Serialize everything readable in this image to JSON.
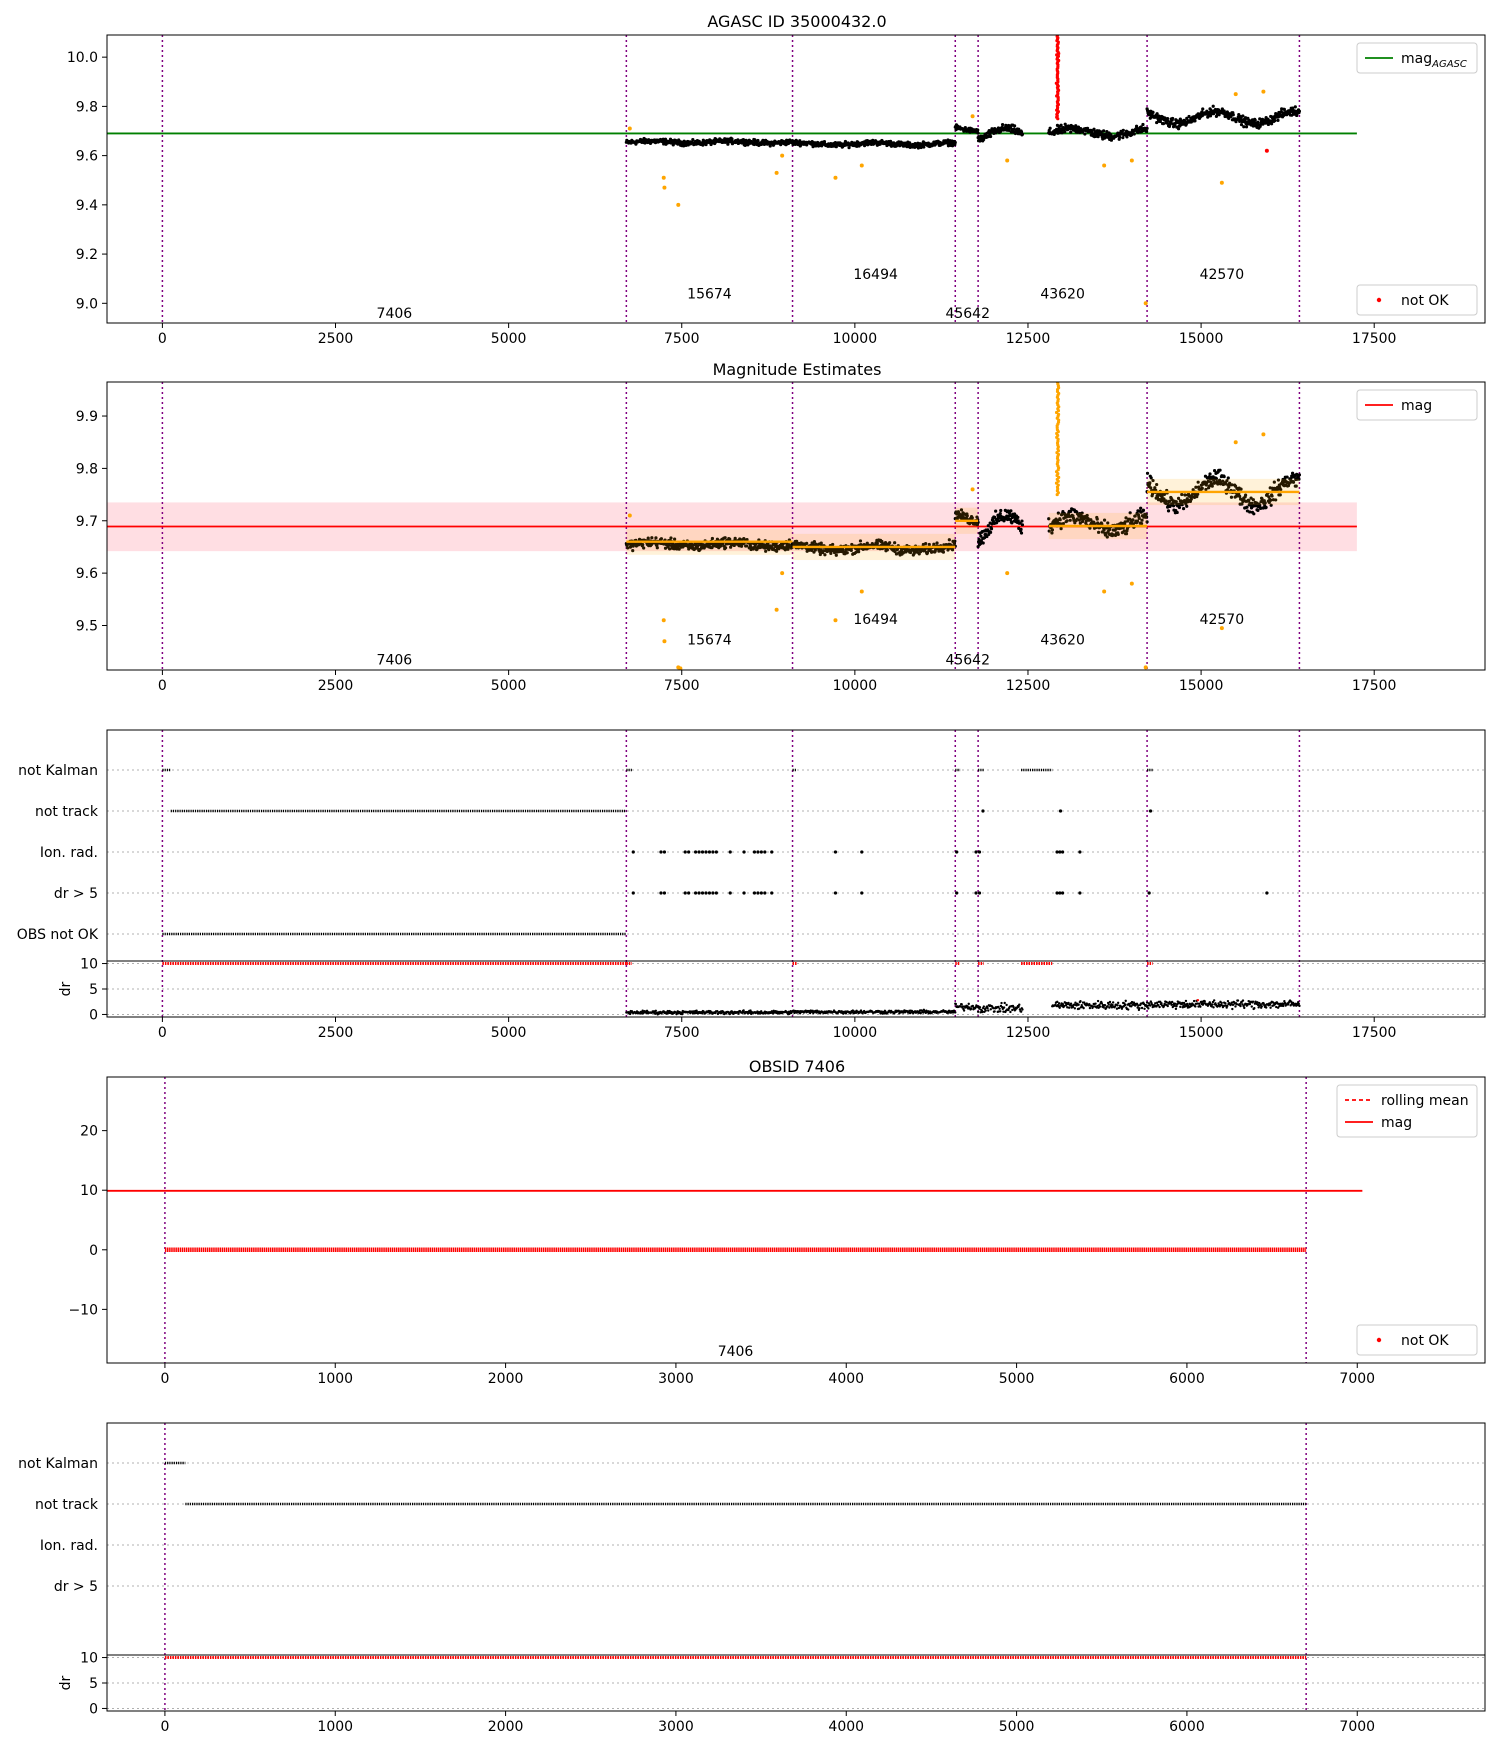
{
  "figure": {
    "titles": {
      "agasc": "AGASC ID 35000432.0",
      "estimates": "Magnitude Estimates",
      "obsid": "OBSID 7406"
    }
  },
  "colors": {
    "data_points": "#000000",
    "suspect": "#ffa500",
    "not_ok": "#ff0000",
    "mag_agasc": "#008000",
    "mag_line": "#ff0000",
    "band": "#ffb6c1",
    "obs_boundary": "#800080",
    "grid": "#b0b0b0"
  },
  "chart_data": [
    {
      "id": "agasc",
      "type": "scatter",
      "title": "AGASC ID 35000432.0",
      "xlim": [
        -800,
        19100
      ],
      "ylim": [
        8.92,
        10.09
      ],
      "xticks": [
        0,
        2500,
        5000,
        7500,
        10000,
        12500,
        15000,
        17500
      ],
      "yticks": [
        9.0,
        9.2,
        9.4,
        9.6,
        9.8,
        10.0
      ],
      "ytick_labels": [
        "9.0",
        "9.2",
        "9.4",
        "9.6",
        "9.8",
        "10.0"
      ],
      "hline": {
        "y": 9.69,
        "xmin": -800,
        "xmax": 17250,
        "color": "#008000"
      },
      "obs_boundaries": [
        0,
        6700,
        9100,
        11450,
        11780,
        14220,
        16420
      ],
      "obs_labels": [
        {
          "text": "7406",
          "x": 3350,
          "y": 8.96
        },
        {
          "text": "15674",
          "x": 7900,
          "y": 9.04
        },
        {
          "text": "16494",
          "x": 10300,
          "y": 9.12
        },
        {
          "text": "45642",
          "x": 11630,
          "y": 8.96
        },
        {
          "text": "43620",
          "x": 13000,
          "y": 9.04
        },
        {
          "text": "42570",
          "x": 15300,
          "y": 9.12
        }
      ],
      "legends": [
        {
          "pos": "upper right",
          "entries": [
            {
              "label": "mag",
              "sub": "AGASC",
              "kind": "line",
              "color": "#008000"
            }
          ]
        },
        {
          "pos": "lower right",
          "entries": [
            {
              "label": "not OK",
              "kind": "dot",
              "color": "#ff0000"
            }
          ]
        }
      ],
      "segments": [
        {
          "x": [
            6700,
            9100
          ],
          "mean": 9.655,
          "amp": 0.004,
          "noise": 0.013
        },
        {
          "x": [
            9100,
            11450
          ],
          "mean": 9.648,
          "amp": 0.005,
          "noise": 0.013
        },
        {
          "x": [
            11450,
            11780
          ],
          "mean": 9.71,
          "amp": 0.01,
          "noise": 0.012
        },
        {
          "x": [
            11780,
            12420
          ],
          "mean": 9.68,
          "amp": 0.03,
          "noise": 0.02
        },
        {
          "x": [
            12800,
            14220
          ],
          "mean": 9.695,
          "amp": 0.015,
          "noise": 0.022
        },
        {
          "x": [
            14220,
            16420
          ],
          "mean": 9.755,
          "amp": 0.025,
          "noise": 0.022
        }
      ],
      "outliers": [
        {
          "x": 6750,
          "y": 9.71,
          "c": "orange"
        },
        {
          "x": 7240,
          "y": 9.51,
          "c": "orange"
        },
        {
          "x": 7250,
          "y": 9.47,
          "c": "orange"
        },
        {
          "x": 7450,
          "y": 9.4,
          "c": "orange"
        },
        {
          "x": 8870,
          "y": 9.53,
          "c": "orange"
        },
        {
          "x": 8950,
          "y": 9.6,
          "c": "orange"
        },
        {
          "x": 9720,
          "y": 9.51,
          "c": "orange"
        },
        {
          "x": 10100,
          "y": 9.56,
          "c": "orange"
        },
        {
          "x": 11700,
          "y": 9.76,
          "c": "orange"
        },
        {
          "x": 12200,
          "y": 9.58,
          "c": "orange"
        },
        {
          "x": 13600,
          "y": 9.56,
          "c": "orange"
        },
        {
          "x": 14000,
          "y": 9.58,
          "c": "orange"
        },
        {
          "x": 14200,
          "y": 9.0,
          "c": "orange"
        },
        {
          "x": 15300,
          "y": 9.49,
          "c": "orange"
        },
        {
          "x": 15950,
          "y": 9.62,
          "c": "red"
        },
        {
          "x": 15900,
          "y": 9.86,
          "c": "orange"
        },
        {
          "x": 15500,
          "y": 9.85,
          "c": "orange"
        }
      ],
      "spike": {
        "x": 12930,
        "ymin": 9.75,
        "ymax": 10.09
      }
    },
    {
      "id": "estimates",
      "type": "scatter",
      "title": "Magnitude Estimates",
      "xlim": [
        -800,
        19100
      ],
      "ylim": [
        9.415,
        9.965
      ],
      "xticks": [
        0,
        2500,
        5000,
        7500,
        10000,
        12500,
        15000,
        17500
      ],
      "yticks": [
        9.5,
        9.6,
        9.7,
        9.8,
        9.9
      ],
      "ytick_labels": [
        "9.5",
        "9.6",
        "9.7",
        "9.8",
        "9.9"
      ],
      "hline": {
        "y": 9.689,
        "xmin": -800,
        "xmax": 17250,
        "color": "#ff0000"
      },
      "band": {
        "ymin": 9.642,
        "ymax": 9.735,
        "xmin": -800,
        "xmax": 17250
      },
      "obs_boundaries": [
        0,
        6700,
        9100,
        11450,
        11780,
        14220,
        16420
      ],
      "obs_labels": [
        {
          "text": "7406",
          "x": 3350,
          "y": 9.435
        },
        {
          "text": "15674",
          "x": 7900,
          "y": 9.473
        },
        {
          "text": "16494",
          "x": 10300,
          "y": 9.512
        },
        {
          "text": "45642",
          "x": 11630,
          "y": 9.435
        },
        {
          "text": "43620",
          "x": 13000,
          "y": 9.473
        },
        {
          "text": "42570",
          "x": 15300,
          "y": 9.512
        }
      ],
      "legends": [
        {
          "pos": "upper right",
          "entries": [
            {
              "label": "mag",
              "kind": "line",
              "color": "#ff0000"
            }
          ]
        }
      ],
      "segments": [
        {
          "x": [
            6700,
            9100
          ],
          "mean": 9.655,
          "amp": 0.004,
          "noise": 0.012,
          "est": 9.66
        },
        {
          "x": [
            9100,
            11450
          ],
          "mean": 9.648,
          "amp": 0.005,
          "noise": 0.012,
          "est": 9.65
        },
        {
          "x": [
            11450,
            11780
          ],
          "mean": 9.71,
          "amp": 0.01,
          "noise": 0.012,
          "est": 9.7
        },
        {
          "x": [
            11780,
            12420
          ],
          "mean": 9.68,
          "amp": 0.03,
          "noise": 0.018
        },
        {
          "x": [
            12800,
            14220
          ],
          "mean": 9.695,
          "amp": 0.015,
          "noise": 0.02,
          "est": 9.69
        },
        {
          "x": [
            14220,
            16420
          ],
          "mean": 9.755,
          "amp": 0.025,
          "noise": 0.02,
          "est": 9.755
        }
      ],
      "outliers": [
        {
          "x": 6750,
          "y": 9.71,
          "c": "orange"
        },
        {
          "x": 7240,
          "y": 9.51,
          "c": "orange"
        },
        {
          "x": 7250,
          "y": 9.47,
          "c": "orange"
        },
        {
          "x": 7450,
          "y": 9.42,
          "c": "orange"
        },
        {
          "x": 7480,
          "y": 9.418,
          "c": "orange"
        },
        {
          "x": 8870,
          "y": 9.53,
          "c": "orange"
        },
        {
          "x": 8950,
          "y": 9.6,
          "c": "orange"
        },
        {
          "x": 9720,
          "y": 9.51,
          "c": "orange"
        },
        {
          "x": 10100,
          "y": 9.565,
          "c": "orange"
        },
        {
          "x": 11700,
          "y": 9.76,
          "c": "orange"
        },
        {
          "x": 12200,
          "y": 9.6,
          "c": "orange"
        },
        {
          "x": 13600,
          "y": 9.565,
          "c": "orange"
        },
        {
          "x": 14000,
          "y": 9.58,
          "c": "orange"
        },
        {
          "x": 14200,
          "y": 9.42,
          "c": "orange"
        },
        {
          "x": 15300,
          "y": 9.495,
          "c": "orange"
        },
        {
          "x": 15900,
          "y": 9.865,
          "c": "orange"
        },
        {
          "x": 15500,
          "y": 9.85,
          "c": "orange"
        }
      ],
      "spike": {
        "x": 12930,
        "ymin": 9.75,
        "ymax": 9.965
      }
    },
    {
      "id": "flags_all",
      "type": "scatter",
      "xlim": [
        -800,
        19100
      ],
      "xticks": [
        0,
        2500,
        5000,
        7500,
        10000,
        12500,
        15000,
        17500
      ],
      "categories": [
        "not Kalman",
        "not track",
        "Ion. rad.",
        "dr > 5",
        "OBS not OK"
      ],
      "obs_boundaries": [
        0,
        6700,
        9100,
        11450,
        11780,
        14220,
        16420
      ],
      "flag_ranges": {
        "not Kalman": [
          [
            0,
            120
          ],
          [
            6700,
            6780
          ],
          [
            9100,
            9160
          ],
          [
            11450,
            11520
          ],
          [
            11780,
            11860
          ],
          [
            12400,
            12850
          ],
          [
            14220,
            14300
          ]
        ],
        "not track": [
          [
            120,
            6700
          ]
        ],
        "OBS not OK": [
          [
            0,
            6700
          ]
        ]
      },
      "flag_points": {
        "not track": [
          11850,
          12970,
          14270
        ],
        "Ion. rad.": [
          6800,
          7200,
          7250,
          7550,
          7600,
          7700,
          7750,
          7800,
          7850,
          7900,
          7950,
          8000,
          8200,
          8400,
          8550,
          8600,
          8650,
          8700,
          8800,
          9720,
          10100,
          11470,
          11750,
          11800,
          12920,
          12960,
          13000,
          13250
        ],
        "dr > 5": [
          6800,
          7200,
          7250,
          7550,
          7600,
          7700,
          7750,
          7800,
          7850,
          7900,
          7950,
          8000,
          8200,
          8400,
          8550,
          8600,
          8650,
          8700,
          8800,
          9720,
          10100,
          11470,
          11750,
          11800,
          12920,
          12960,
          13000,
          13250,
          14250,
          15950
        ]
      },
      "dr": {
        "ylim": [
          -0.5,
          10.5
        ],
        "yticks": [
          0,
          5,
          10
        ],
        "ylabel": "dr",
        "clip_ranges": [
          [
            0,
            6700
          ],
          [
            6700,
            6780
          ],
          [
            9100,
            9160
          ],
          [
            11450,
            11520
          ],
          [
            11780,
            11860
          ],
          [
            12400,
            12850
          ],
          [
            14220,
            14300
          ]
        ],
        "segments": [
          {
            "x": [
              6700,
              9100
            ],
            "mean": 0.4,
            "noise": 0.4
          },
          {
            "x": [
              9100,
              11450
            ],
            "mean": 0.5,
            "noise": 0.4
          },
          {
            "x": [
              11450,
              11780
            ],
            "mean": 1.5,
            "noise": 0.8
          },
          {
            "x": [
              11780,
              12420
            ],
            "mean": 1.2,
            "noise": 1.0
          },
          {
            "x": [
              12850,
              14220
            ],
            "mean": 1.8,
            "noise": 1.0
          },
          {
            "x": [
              14220,
              16420
            ],
            "mean": 2.0,
            "noise": 1.0
          }
        ]
      }
    },
    {
      "id": "obsid",
      "type": "line",
      "title": "OBSID 7406",
      "xlim": [
        -340,
        7750
      ],
      "ylim": [
        -19,
        29
      ],
      "xticks": [
        0,
        1000,
        2000,
        3000,
        4000,
        5000,
        6000,
        7000
      ],
      "yticks": [
        -10,
        0,
        10,
        20
      ],
      "ytick_labels": [
        "−10",
        "0",
        "10",
        "20"
      ],
      "hline": {
        "y": 9.9,
        "xmin": -340,
        "xmax": 7030,
        "color": "#ff0000"
      },
      "obs_boundaries": [
        0,
        6700
      ],
      "obs_labels": [
        {
          "text": "7406",
          "x": 3350,
          "y": -17
        }
      ],
      "notok_line": {
        "y": 0,
        "xmin": 0,
        "xmax": 6700
      },
      "legends": [
        {
          "pos": "upper right",
          "entries": [
            {
              "label": "rolling mean",
              "kind": "dashed",
              "color": "#ff0000"
            },
            {
              "label": "mag",
              "kind": "line",
              "color": "#ff0000"
            }
          ]
        },
        {
          "pos": "lower right",
          "entries": [
            {
              "label": "not OK",
              "kind": "dot",
              "color": "#ff0000"
            }
          ]
        }
      ]
    },
    {
      "id": "flags_obsid",
      "type": "scatter",
      "xlim": [
        -340,
        7750
      ],
      "xticks": [
        0,
        1000,
        2000,
        3000,
        4000,
        5000,
        6000,
        7000
      ],
      "categories": [
        "not Kalman",
        "not track",
        "Ion. rad.",
        "dr > 5"
      ],
      "obs_boundaries": [
        0,
        6700
      ],
      "flag_ranges": {
        "not Kalman": [
          [
            0,
            120
          ]
        ],
        "not track": [
          [
            120,
            6700
          ]
        ]
      },
      "flag_points": {},
      "dr": {
        "ylim": [
          -0.5,
          10.5
        ],
        "yticks": [
          0,
          5,
          10
        ],
        "ylabel": "dr",
        "clip_ranges": [
          [
            0,
            6700
          ]
        ],
        "segments": []
      }
    }
  ]
}
